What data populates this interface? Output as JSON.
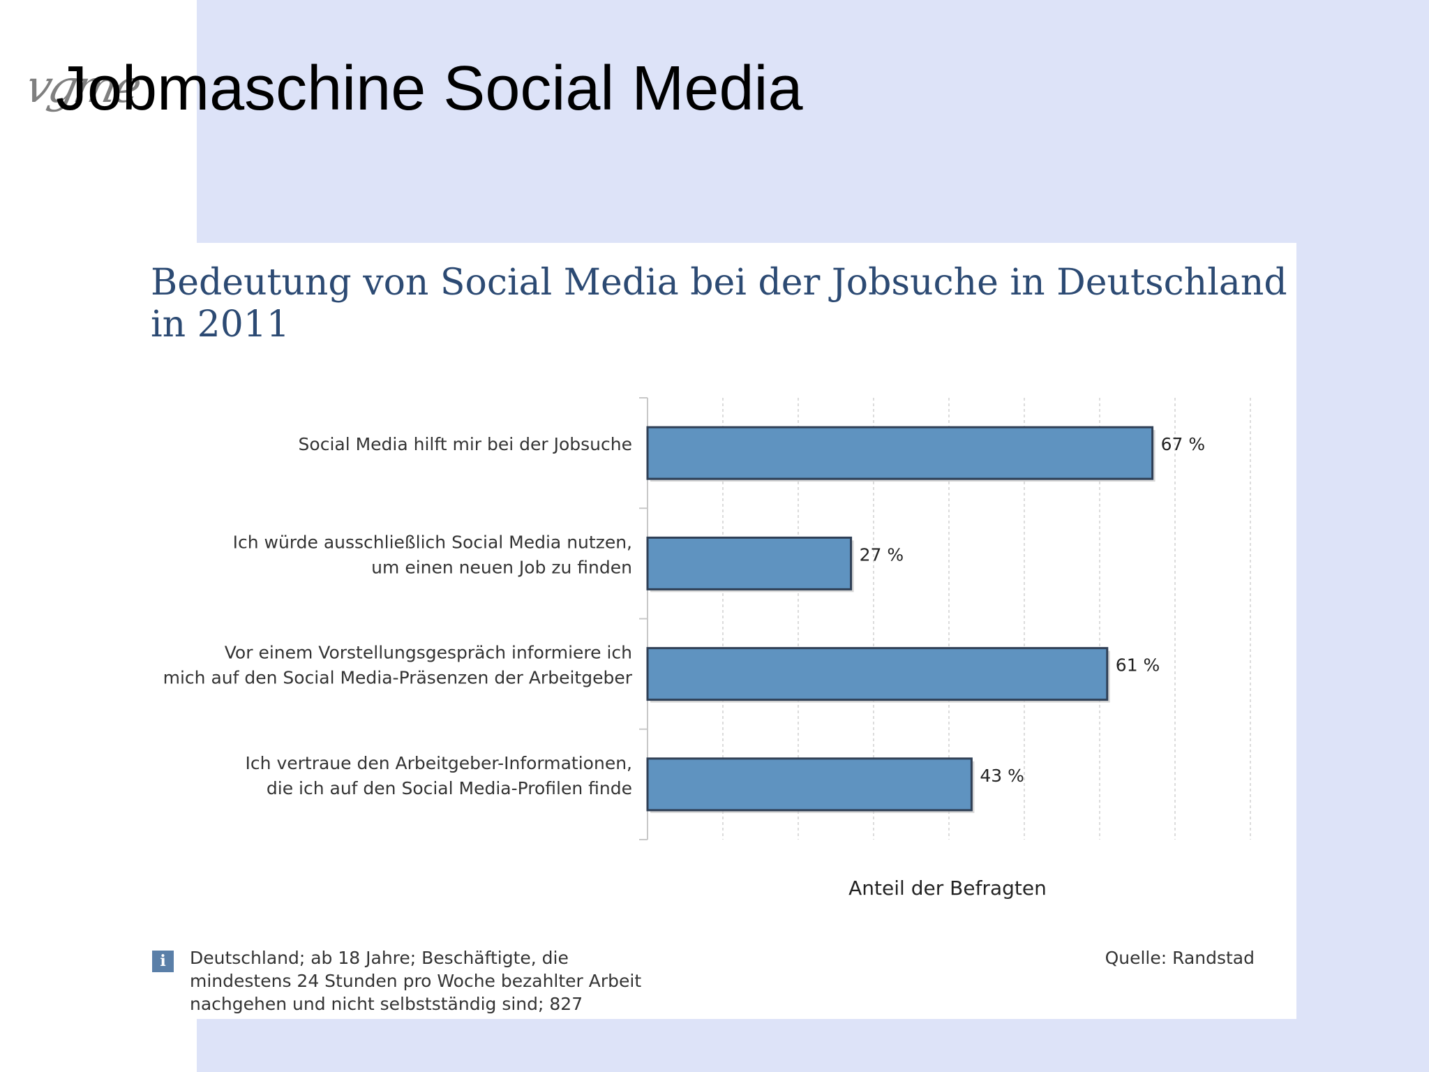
{
  "slide": {
    "title": "Jobmaschine Social Media",
    "logo_text": "vgme"
  },
  "colors": {
    "background_panel": "#dde3f8",
    "bar_fill": "#5f93c0",
    "bar_stroke": "#2f3f55",
    "title_text": "#2c4a73"
  },
  "chart_data": {
    "type": "bar",
    "orientation": "horizontal",
    "title": "Bedeutung von Social Media bei der Jobsuche in Deutschland in 2011",
    "categories": [
      [
        "Social Media hilft mir bei der Jobsuche"
      ],
      [
        "Ich würde ausschließlich Social Media nutzen,",
        "um einen neuen Job zu finden"
      ],
      [
        "Vor einem Vorstellungsgespräch informiere ich",
        "mich auf den Social Media-Präsenzen der Arbeitgeber"
      ],
      [
        "Ich vertraue den Arbeitgeber-Informationen,",
        "die ich auf den Social Media-Profilen finde"
      ]
    ],
    "values": [
      67,
      27,
      61,
      43
    ],
    "value_labels": [
      "67 %",
      "27 %",
      "61 %",
      "43 %"
    ],
    "xlabel": "Anteil der Befragten",
    "xlim": [
      0,
      80
    ],
    "grid": "vertical dashed",
    "legend": "none"
  },
  "footer": {
    "info_icon": "i",
    "note": "Deutschland; ab 18 Jahre; Beschäftigte, die mindestens 24 Stunden pro Woche bezahlter Arbeit nachgehen und nicht selbstständig sind; 827",
    "source": "Quelle: Randstad"
  }
}
